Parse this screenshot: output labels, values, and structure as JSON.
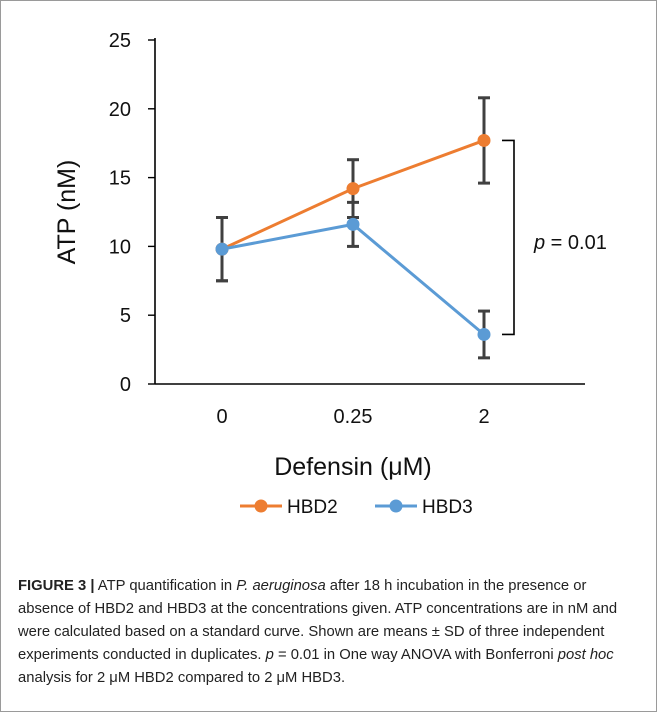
{
  "chart_data": {
    "type": "line",
    "categories": [
      "0",
      "0.25",
      "2"
    ],
    "xlabel": "Defensin (μM)",
    "ylabel": "ATP (nM)",
    "ylim": [
      0,
      25
    ],
    "yticks": [
      0,
      5,
      10,
      15,
      20,
      25
    ],
    "grid": false,
    "legend_position": "bottom",
    "series": [
      {
        "name": "HBD2",
        "color": "#ED7D31",
        "values": [
          9.8,
          14.2,
          17.7
        ],
        "error": [
          2.3,
          2.1,
          3.1
        ]
      },
      {
        "name": "HBD3",
        "color": "#5B9BD5",
        "values": [
          9.8,
          11.6,
          3.6
        ],
        "error": [
          2.3,
          1.6,
          1.7
        ]
      }
    ],
    "annotations": [
      {
        "text_italic": "p",
        "text_rest": " = 0.01",
        "category": "2",
        "between": [
          3.6,
          17.7
        ]
      }
    ]
  },
  "caption": {
    "label": "FIGURE 3 |",
    "seg1": " ATP quantification in ",
    "italic1": "P. aeruginosa",
    "seg2": " after 18 h incubation in the presence or absence of HBD2 and HBD3 at the concentrations given. ATP concentrations are in nM and were calculated based on a standard curve. Shown are means ± SD of three independent experiments conducted in duplicates. ",
    "italic2": "p",
    "seg3": " = 0.01 in One way ANOVA with Bonferroni ",
    "italic3": "post hoc",
    "seg4": " analysis for 2 μM HBD2 compared to 2 μM HBD3."
  }
}
